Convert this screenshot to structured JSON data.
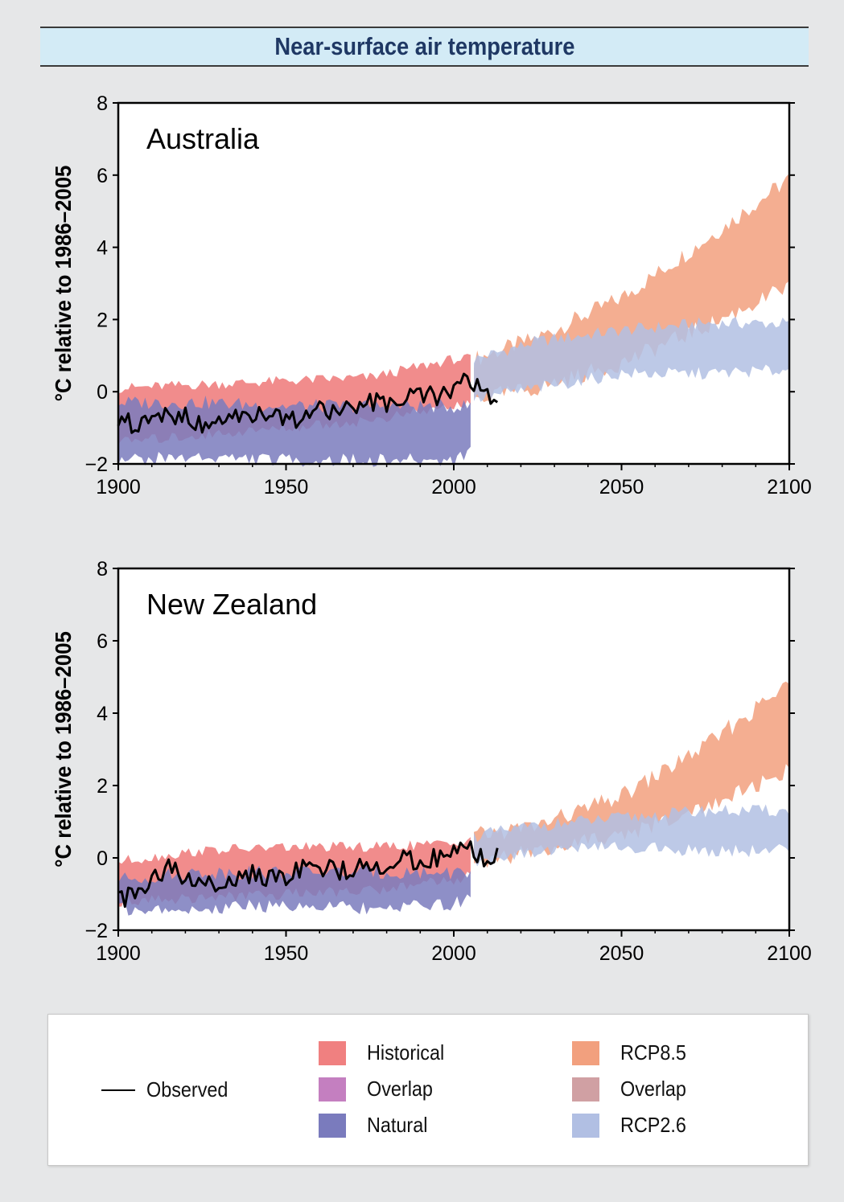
{
  "page_title": "Near-surface air temperature",
  "chart_data": [
    {
      "type": "area",
      "title": "Australia",
      "ylabel": "°C relative to 1986–2005",
      "xlabel": "",
      "xlim": [
        1900,
        2100
      ],
      "ylim": [
        -2,
        8
      ],
      "xticks": [
        1900,
        1950,
        2000,
        2050,
        2100
      ],
      "yticks": [
        -2,
        0,
        2,
        4,
        6,
        8
      ],
      "grid": false,
      "series": [
        {
          "name": "Historical",
          "color": "#f08080",
          "x": [
            1900,
            1925,
            1950,
            1975,
            2000,
            2005
          ],
          "upper": [
            0.1,
            0.2,
            0.3,
            0.4,
            0.9,
            0.9
          ],
          "lower": [
            -1.4,
            -1.2,
            -1.0,
            -0.8,
            -0.4,
            -0.3
          ]
        },
        {
          "name": "Natural",
          "color": "#7a7bbd",
          "x": [
            1900,
            1925,
            1950,
            1975,
            2000,
            2005
          ],
          "upper": [
            -0.3,
            -0.3,
            -0.4,
            -0.4,
            -0.4,
            -0.4
          ],
          "lower": [
            -1.9,
            -1.8,
            -1.9,
            -1.9,
            -1.9,
            -1.6
          ]
        },
        {
          "name": "RCP8.5",
          "color": "#f2a07e",
          "x": [
            2006,
            2025,
            2050,
            2075,
            2100
          ],
          "upper": [
            0.9,
            1.5,
            2.6,
            4.2,
            5.9
          ],
          "lower": [
            -0.2,
            0.1,
            0.8,
            1.8,
            2.9
          ]
        },
        {
          "name": "RCP2.6",
          "color": "#b1bfe3",
          "x": [
            2006,
            2025,
            2050,
            2075,
            2100
          ],
          "upper": [
            0.9,
            1.4,
            1.7,
            1.9,
            1.9
          ],
          "lower": [
            -0.2,
            0.1,
            0.5,
            0.5,
            0.6
          ]
        },
        {
          "name": "Observed",
          "color": "#000000",
          "x": [
            1900,
            1905,
            1910,
            1915,
            1920,
            1925,
            1930,
            1935,
            1940,
            1945,
            1950,
            1955,
            1960,
            1965,
            1970,
            1975,
            1980,
            1985,
            1990,
            1995,
            2000,
            2005,
            2010,
            2013
          ],
          "y": [
            -0.7,
            -1.0,
            -0.8,
            -0.6,
            -0.7,
            -0.9,
            -0.8,
            -0.7,
            -0.6,
            -0.8,
            -0.7,
            -0.8,
            -0.5,
            -0.6,
            -0.4,
            -0.3,
            -0.3,
            -0.2,
            0.0,
            -0.1,
            0.1,
            0.3,
            0.0,
            -0.2
          ]
        }
      ]
    },
    {
      "type": "area",
      "title": "New Zealand",
      "ylabel": "°C relative to 1986–2005",
      "xlabel": "",
      "xlim": [
        1900,
        2100
      ],
      "ylim": [
        -2,
        8
      ],
      "xticks": [
        1900,
        1950,
        2000,
        2050,
        2100
      ],
      "yticks": [
        -2,
        0,
        2,
        4,
        6,
        8
      ],
      "grid": false,
      "series": [
        {
          "name": "Historical",
          "color": "#f08080",
          "x": [
            1900,
            1925,
            1950,
            1975,
            2000,
            2005
          ],
          "upper": [
            -0.1,
            0.2,
            0.3,
            0.3,
            0.4,
            0.6
          ],
          "lower": [
            -1.2,
            -1.1,
            -1.0,
            -0.9,
            -0.6,
            -0.5
          ]
        },
        {
          "name": "Natural",
          "color": "#7a7bbd",
          "x": [
            1900,
            1925,
            1950,
            1975,
            2000,
            2005
          ],
          "upper": [
            -0.6,
            -0.4,
            -0.4,
            -0.4,
            -0.4,
            -0.4
          ],
          "lower": [
            -1.4,
            -1.4,
            -1.3,
            -1.4,
            -1.3,
            -1.1
          ]
        },
        {
          "name": "RCP8.5",
          "color": "#f2a07e",
          "x": [
            2006,
            2025,
            2050,
            2075,
            2100
          ],
          "upper": [
            0.6,
            0.9,
            1.7,
            3.1,
            4.8
          ],
          "lower": [
            -0.1,
            0.2,
            0.6,
            1.4,
            2.4
          ]
        },
        {
          "name": "RCP2.6",
          "color": "#b1bfe3",
          "x": [
            2006,
            2025,
            2050,
            2075,
            2100
          ],
          "upper": [
            0.6,
            0.9,
            1.1,
            1.3,
            1.3
          ],
          "lower": [
            -0.1,
            0.2,
            0.3,
            0.2,
            0.2
          ]
        },
        {
          "name": "Observed",
          "color": "#000000",
          "x": [
            1900,
            1905,
            1910,
            1915,
            1920,
            1925,
            1930,
            1935,
            1940,
            1945,
            1950,
            1955,
            1960,
            1965,
            1970,
            1975,
            1980,
            1985,
            1990,
            1995,
            2000,
            2005,
            2010,
            2013
          ],
          "y": [
            -1.2,
            -0.9,
            -0.6,
            -0.3,
            -0.5,
            -0.7,
            -0.8,
            -0.5,
            -0.4,
            -0.6,
            -0.5,
            -0.3,
            -0.2,
            -0.4,
            -0.3,
            -0.2,
            -0.2,
            0.0,
            -0.1,
            0.0,
            0.3,
            0.2,
            0.0,
            0.1
          ]
        }
      ]
    }
  ],
  "legend": {
    "observed": "Observed",
    "historical": "Historical",
    "overlap_hist": "Overlap",
    "natural": "Natural",
    "rcp85": "RCP8.5",
    "overlap_rcp": "Overlap",
    "rcp26": "RCP2.6",
    "colors": {
      "historical": "#f08080",
      "overlap_hist": "#c47fc0",
      "natural": "#7a7bbd",
      "rcp85": "#f2a07e",
      "overlap_rcp": "#d0a0a3",
      "rcp26": "#b1bfe3"
    }
  }
}
